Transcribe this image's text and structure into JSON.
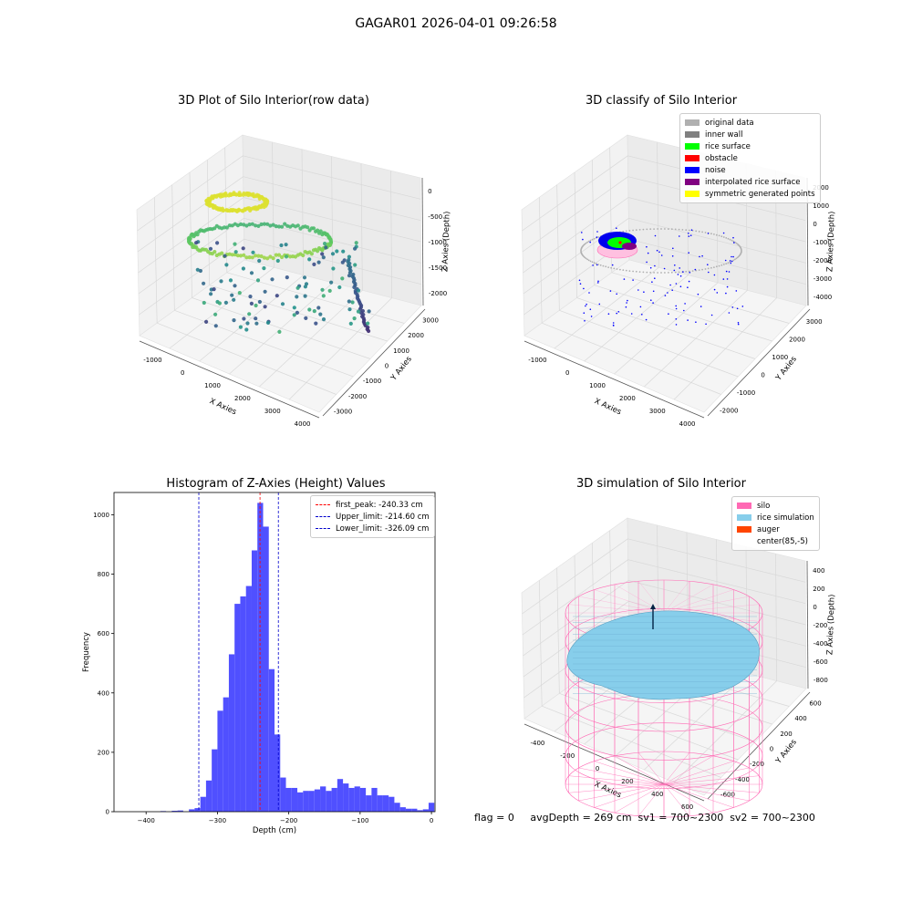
{
  "figure": {
    "suptitle": "GAGAR01 2026-04-01 09:26:58",
    "footer_text": "flag = 0     avgDepth = 269 cm  sv1 = 700~2300  sv2 = 700~2300"
  },
  "chart_data": [
    {
      "type": "scatter",
      "projection": "3d",
      "title": "3D Plot of Silo Interior(row data)",
      "xlabel": "X Axies",
      "ylabel": "Y Axies",
      "zlabel": "Z Axies (Depth)",
      "x_ticks": [
        "-1000",
        "0",
        "1000",
        "2000",
        "3000",
        "4000"
      ],
      "y_ticks": [
        "-3000",
        "-2000",
        "-1000",
        "0",
        "1000",
        "2000",
        "3000"
      ],
      "z_ticks": [
        "0",
        "-500",
        "-1000",
        "-1500",
        "-2000"
      ],
      "colormap": "viridis"
    },
    {
      "type": "scatter",
      "projection": "3d",
      "title": "3D classify of Silo Interior",
      "xlabel": "X Axies",
      "ylabel": "Y Axies",
      "zlabel": "Z Axies (Depth)",
      "x_ticks": [
        "-1000",
        "0",
        "1000",
        "2000",
        "3000",
        "4000"
      ],
      "y_ticks": [
        "-2000",
        "-1000",
        "0",
        "1000",
        "2000",
        "3000"
      ],
      "z_ticks": [
        "2000",
        "1000",
        "0",
        "-1000",
        "-2000",
        "-3000",
        "-4000"
      ],
      "legend": [
        {
          "label": "original data",
          "color": "#b0b0b0"
        },
        {
          "label": "inner wall",
          "color": "#808080"
        },
        {
          "label": "rice surface",
          "color": "#00ff00"
        },
        {
          "label": "obstacle",
          "color": "#ff0000"
        },
        {
          "label": "noise",
          "color": "#0000ff"
        },
        {
          "label": "interpolated rice surface",
          "color": "#800080"
        },
        {
          "label": "symmetric generated points",
          "color": "#ffff00"
        }
      ],
      "legend_position": "top-right"
    },
    {
      "type": "bar",
      "subtype": "histogram",
      "title": "Histogram of Z-Axies (Height) Values",
      "xlabel": "Depth (cm)",
      "ylabel": "Frequency",
      "xlim": [
        -445,
        5
      ],
      "ylim": [
        0,
        1075
      ],
      "x_ticks": [
        -400,
        -300,
        -200,
        -100,
        0
      ],
      "y_ticks": [
        0,
        200,
        400,
        600,
        800,
        1000
      ],
      "bar_color": "#5050ff",
      "bins": [
        {
          "x0": -380,
          "x1": -372,
          "v": 2
        },
        {
          "x0": -364,
          "x1": -356,
          "v": 3
        },
        {
          "x0": -356,
          "x1": -348,
          "v": 4
        },
        {
          "x0": -340,
          "x1": -332,
          "v": 8
        },
        {
          "x0": -332,
          "x1": -324,
          "v": 12
        },
        {
          "x0": -324,
          "x1": -316,
          "v": 50
        },
        {
          "x0": -316,
          "x1": -308,
          "v": 105
        },
        {
          "x0": -308,
          "x1": -300,
          "v": 210
        },
        {
          "x0": -300,
          "x1": -292,
          "v": 340
        },
        {
          "x0": -292,
          "x1": -284,
          "v": 385
        },
        {
          "x0": -284,
          "x1": -276,
          "v": 530
        },
        {
          "x0": -276,
          "x1": -268,
          "v": 700
        },
        {
          "x0": -268,
          "x1": -260,
          "v": 725
        },
        {
          "x0": -260,
          "x1": -252,
          "v": 760
        },
        {
          "x0": -252,
          "x1": -244,
          "v": 880
        },
        {
          "x0": -244,
          "x1": -236,
          "v": 1040
        },
        {
          "x0": -236,
          "x1": -228,
          "v": 960
        },
        {
          "x0": -228,
          "x1": -220,
          "v": 480
        },
        {
          "x0": -220,
          "x1": -212,
          "v": 260
        },
        {
          "x0": -212,
          "x1": -204,
          "v": 115
        },
        {
          "x0": -204,
          "x1": -196,
          "v": 80
        },
        {
          "x0": -196,
          "x1": -188,
          "v": 80
        },
        {
          "x0": -188,
          "x1": -180,
          "v": 65
        },
        {
          "x0": -180,
          "x1": -172,
          "v": 70
        },
        {
          "x0": -172,
          "x1": -164,
          "v": 70
        },
        {
          "x0": -164,
          "x1": -156,
          "v": 75
        },
        {
          "x0": -156,
          "x1": -148,
          "v": 85
        },
        {
          "x0": -148,
          "x1": -140,
          "v": 70
        },
        {
          "x0": -140,
          "x1": -132,
          "v": 80
        },
        {
          "x0": -132,
          "x1": -124,
          "v": 110
        },
        {
          "x0": -124,
          "x1": -116,
          "v": 95
        },
        {
          "x0": -116,
          "x1": -108,
          "v": 80
        },
        {
          "x0": -108,
          "x1": -100,
          "v": 85
        },
        {
          "x0": -100,
          "x1": -92,
          "v": 80
        },
        {
          "x0": -92,
          "x1": -84,
          "v": 55
        },
        {
          "x0": -84,
          "x1": -76,
          "v": 80
        },
        {
          "x0": -76,
          "x1": -68,
          "v": 55
        },
        {
          "x0": -68,
          "x1": -60,
          "v": 55
        },
        {
          "x0": -60,
          "x1": -52,
          "v": 50
        },
        {
          "x0": -52,
          "x1": -44,
          "v": 30
        },
        {
          "x0": -44,
          "x1": -36,
          "v": 15
        },
        {
          "x0": -36,
          "x1": -28,
          "v": 10
        },
        {
          "x0": -28,
          "x1": -20,
          "v": 10
        },
        {
          "x0": -20,
          "x1": -12,
          "v": 5
        },
        {
          "x0": -12,
          "x1": -4,
          "v": 8
        },
        {
          "x0": -4,
          "x1": 4,
          "v": 30
        }
      ],
      "vlines": [
        {
          "label": "first_peak: -240.33 cm",
          "x": -240.33,
          "color": "#ff0000"
        },
        {
          "label": "Upper_limit: -214.60 cm",
          "x": -214.6,
          "color": "#0000cc"
        },
        {
          "label": "Lower_limit: -326.09 cm",
          "x": -326.09,
          "color": "#0000cc"
        }
      ],
      "legend_position": "top-right"
    },
    {
      "type": "scatter",
      "projection": "3d",
      "title": "3D simulation of Silo Interior",
      "xlabel": "X Axies",
      "ylabel": "Y Axies",
      "zlabel": "Z Axies (Depth)",
      "x_ticks": [
        "-400",
        "-200",
        "0",
        "200",
        "400",
        "600"
      ],
      "y_ticks": [
        "-600",
        "-400",
        "-200",
        "0",
        "200",
        "400",
        "600"
      ],
      "z_ticks": [
        "400",
        "200",
        "0",
        "-200",
        "-400",
        "-600",
        "-800"
      ],
      "legend": [
        {
          "label": "silo",
          "color": "#ff69b4"
        },
        {
          "label": "rice simulation",
          "color": "#87ceeb"
        },
        {
          "label": "auger",
          "color": "#ff4500"
        },
        {
          "label": "center(85,-5)",
          "color": ""
        }
      ],
      "legend_position": "top-right"
    }
  ]
}
